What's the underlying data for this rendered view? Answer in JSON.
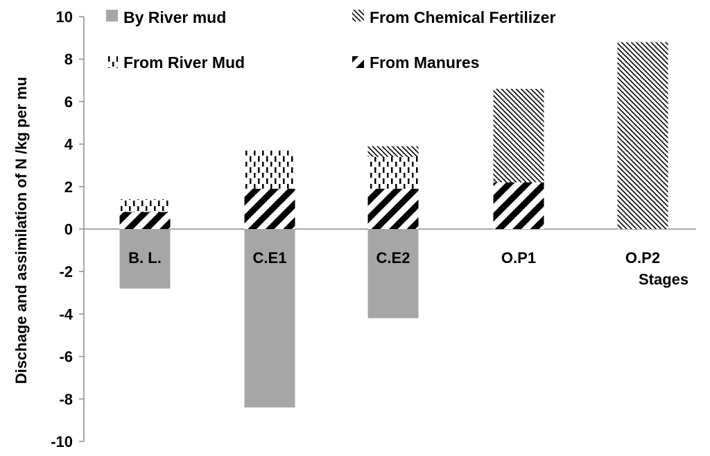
{
  "chart_data": {
    "type": "bar",
    "stacked": true,
    "ylabel": "Dischage and assimilation of N /kg per mu",
    "xlabel": "Stages",
    "ylim": [
      -10,
      10
    ],
    "yticks": [
      -10,
      -8,
      -6,
      -4,
      -2,
      0,
      2,
      4,
      6,
      8,
      10
    ],
    "categories": [
      "B. L.",
      "C.E1",
      "C.E2",
      "O.P1",
      "O.P2"
    ],
    "grid": false,
    "legend_position": "top",
    "series": [
      {
        "name": "By River mud",
        "key": "river_mud_out",
        "pattern": "solid-gray",
        "color": "#a6a6a6",
        "values": [
          -2.8,
          -8.4,
          -4.2,
          0,
          0
        ]
      },
      {
        "name": "From Manures",
        "key": "manures",
        "pattern": "thick-diagonal-stripes",
        "color": "#000000",
        "values": [
          0.8,
          1.9,
          1.9,
          2.2,
          0
        ]
      },
      {
        "name": "From River Mud",
        "key": "river_mud_in",
        "pattern": "dashed-vertical",
        "color": "#000000",
        "values": [
          0.6,
          1.8,
          1.5,
          0,
          0
        ]
      },
      {
        "name": "From Chemical Fertilizer",
        "key": "chem_fert",
        "pattern": "fine-diagonal-hatch",
        "color": "#000000",
        "values": [
          0,
          0,
          0.5,
          4.4,
          8.8
        ]
      }
    ],
    "legend_order": [
      "river_mud_out",
      "chem_fert",
      "river_mud_in",
      "manures"
    ]
  }
}
